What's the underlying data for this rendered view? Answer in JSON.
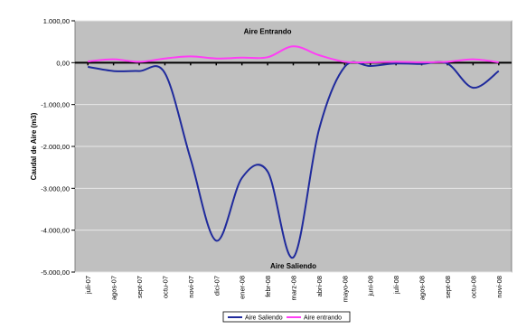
{
  "chart_data": {
    "type": "line",
    "ylabel": "Caudal de Aire (m3)",
    "xlabel": "",
    "ylim": [
      -5000,
      1000
    ],
    "yticks": [
      1000,
      0,
      -1000,
      -2000,
      -3000,
      -4000,
      -5000
    ],
    "ytick_labels": [
      "1.000,00",
      "0,00",
      "-1.000,00",
      "-2.000,00",
      "-3.000,00",
      "-4.000,00",
      "-5.000,00"
    ],
    "categories": [
      "juli-07",
      "agos-07",
      "sept-07",
      "octu-07",
      "novi-07",
      "dici-07",
      "ener-08",
      "febr-08",
      "marz-08",
      "abri-08",
      "mayo-08",
      "juni-08",
      "juli-08",
      "agos-08",
      "sept-08",
      "octu-08",
      "novi-08"
    ],
    "series": [
      {
        "name": "Aire Saliendo",
        "color": "#1f2a9c",
        "values": [
          -100,
          -200,
          -200,
          -250,
          -2300,
          -4250,
          -2750,
          -2600,
          -4650,
          -1600,
          -100,
          -80,
          -20,
          -30,
          -20,
          -600,
          -200
        ]
      },
      {
        "name": "Aire entrando",
        "color": "#ff3df5",
        "values": [
          30,
          80,
          20,
          100,
          150,
          100,
          120,
          130,
          390,
          180,
          20,
          10,
          20,
          10,
          20,
          80,
          10
        ]
      }
    ],
    "annotations": [
      {
        "text": "Aire Entrando",
        "x": "febr-08",
        "y": 750
      },
      {
        "text": "Aire Saliendo",
        "x": "marz-08",
        "y": -4850
      }
    ],
    "grid": true,
    "legend": "bottom-center",
    "plot_background": "#c0c0c0",
    "gridline_color": "#e8e8e8"
  }
}
